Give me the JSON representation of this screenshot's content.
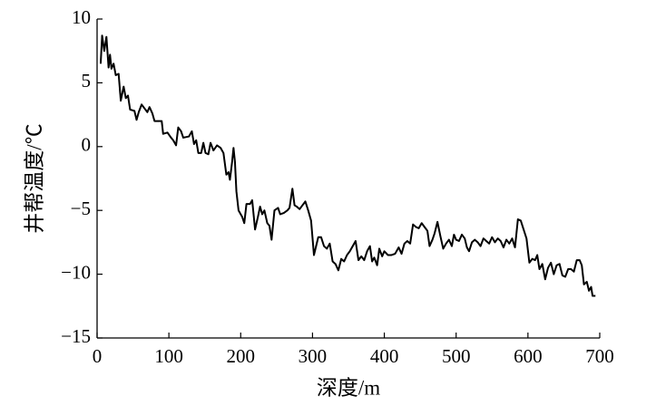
{
  "chart_data": {
    "type": "line",
    "x_label": "深度/m",
    "y_label": "井帮温度/℃",
    "color": "#000000",
    "x": [
      5,
      7,
      10,
      13,
      16,
      18,
      20,
      23,
      26,
      30,
      33,
      37,
      40,
      43,
      46,
      52,
      55,
      58,
      62,
      66,
      70,
      73,
      77,
      80,
      90,
      92,
      98,
      103,
      106,
      110,
      113,
      117,
      120,
      128,
      132,
      135,
      138,
      141,
      145,
      148,
      151,
      155,
      158,
      162,
      167,
      172,
      176,
      180,
      183,
      185,
      188,
      190,
      192,
      194,
      197,
      202,
      205,
      208,
      213,
      216,
      220,
      224,
      227,
      230,
      233,
      237,
      240,
      243,
      247,
      252,
      255,
      260,
      265,
      268,
      272,
      275,
      278,
      282,
      286,
      290,
      294,
      298,
      302,
      305,
      308,
      312,
      316,
      320,
      324,
      328,
      332,
      336,
      340,
      344,
      348,
      352,
      356,
      360,
      364,
      368,
      372,
      376,
      380,
      383,
      386,
      390,
      393,
      397,
      400,
      405,
      410,
      415,
      420,
      424,
      428,
      432,
      436,
      440,
      444,
      448,
      452,
      456,
      460,
      463,
      467,
      470,
      474,
      478,
      482,
      486,
      490,
      494,
      497,
      500,
      504,
      508,
      512,
      515,
      518,
      522,
      526,
      530,
      534,
      538,
      542,
      546,
      550,
      554,
      558,
      562,
      566,
      570,
      574,
      578,
      582,
      586,
      590,
      594,
      598,
      602,
      606,
      610,
      613,
      616,
      620,
      624,
      628,
      632,
      636,
      640,
      644,
      648,
      652,
      656,
      660,
      664,
      668,
      672,
      675,
      678,
      682,
      685,
      688,
      690,
      694
    ],
    "values": [
      6.5,
      8.7,
      7.5,
      8.6,
      6.2,
      7.2,
      6.1,
      6.5,
      5.6,
      5.7,
      3.6,
      4.7,
      3.8,
      4.0,
      2.9,
      2.8,
      2.1,
      2.7,
      3.3,
      3.0,
      2.7,
      3.1,
      2.6,
      2.0,
      2.0,
      1.0,
      1.1,
      0.7,
      0.5,
      0.1,
      1.5,
      1.2,
      0.7,
      0.8,
      1.2,
      0.2,
      0.5,
      -0.5,
      -0.5,
      0.3,
      -0.5,
      -0.6,
      0.3,
      -0.3,
      0.1,
      -0.1,
      -0.5,
      -2.2,
      -2.0,
      -2.6,
      -1.2,
      -0.1,
      -1.2,
      -3.5,
      -5.0,
      -5.5,
      -6.0,
      -4.5,
      -4.5,
      -4.2,
      -6.5,
      -5.5,
      -4.7,
      -5.3,
      -5.0,
      -6.0,
      -6.2,
      -7.3,
      -5.0,
      -4.8,
      -5.3,
      -5.2,
      -5.0,
      -4.8,
      -3.3,
      -4.6,
      -4.7,
      -4.9,
      -4.6,
      -4.3,
      -5.0,
      -5.8,
      -8.5,
      -7.8,
      -7.1,
      -7.1,
      -7.8,
      -8.0,
      -7.6,
      -9.0,
      -9.2,
      -9.7,
      -8.8,
      -9.0,
      -8.5,
      -8.2,
      -7.8,
      -7.4,
      -8.9,
      -8.6,
      -8.9,
      -8.2,
      -7.8,
      -9.0,
      -8.7,
      -9.3,
      -8.0,
      -8.6,
      -8.2,
      -8.5,
      -8.5,
      -8.4,
      -7.9,
      -8.4,
      -7.6,
      -7.4,
      -7.6,
      -6.1,
      -6.3,
      -6.4,
      -6.0,
      -6.3,
      -6.6,
      -7.8,
      -7.3,
      -6.8,
      -5.9,
      -7.0,
      -8.0,
      -7.6,
      -7.3,
      -7.8,
      -6.9,
      -7.3,
      -7.4,
      -6.9,
      -7.2,
      -7.9,
      -8.2,
      -7.5,
      -7.3,
      -7.5,
      -7.8,
      -7.2,
      -7.4,
      -7.6,
      -7.1,
      -7.5,
      -7.2,
      -7.4,
      -7.9,
      -7.3,
      -7.6,
      -7.2,
      -7.9,
      -5.7,
      -5.8,
      -6.5,
      -7.2,
      -9.1,
      -8.8,
      -8.9,
      -8.5,
      -9.6,
      -9.2,
      -10.4,
      -9.5,
      -9.1,
      -10.0,
      -9.3,
      -9.2,
      -10.1,
      -10.2,
      -9.6,
      -9.6,
      -9.8,
      -8.9,
      -8.9,
      -9.3,
      -10.8,
      -10.6,
      -11.3,
      -11.0,
      -11.7,
      -11.7
    ],
    "xlim": [
      0,
      700
    ],
    "xticks": [
      0,
      100,
      200,
      300,
      400,
      500,
      600,
      700
    ],
    "ylim": [
      -15,
      10
    ],
    "yticks": [
      {
        "value": -15,
        "label": "−15"
      },
      {
        "value": -10,
        "label": "−10"
      },
      {
        "value": -5,
        "label": "−5"
      },
      0,
      5,
      10
    ]
  }
}
